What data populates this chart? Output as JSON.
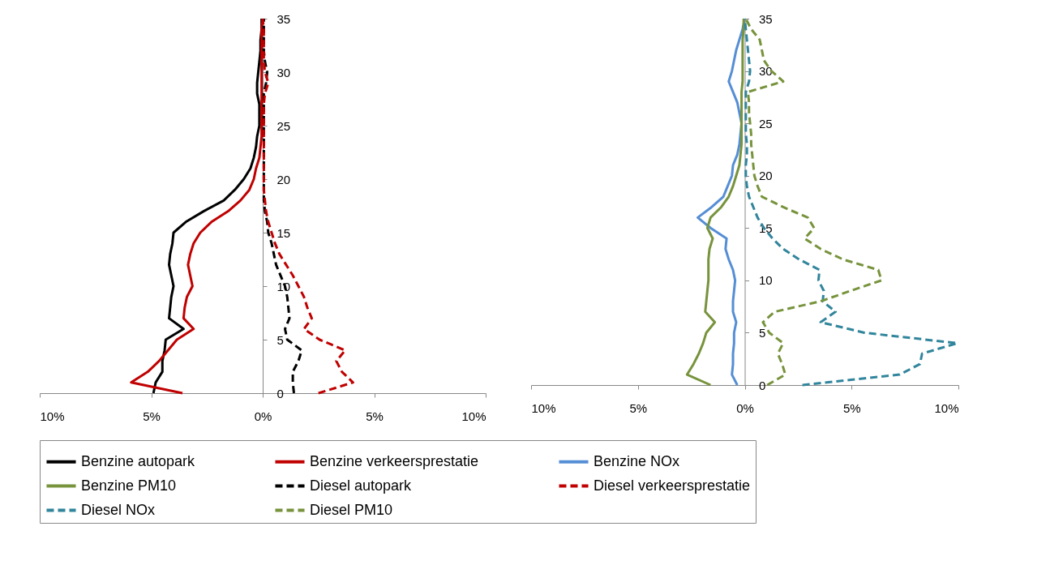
{
  "chart_data": [
    {
      "type": "line",
      "orientation": "horizontal",
      "legend": "bottom",
      "x": [
        0,
        1,
        2,
        3,
        4,
        5,
        6,
        7,
        8,
        9,
        10,
        11,
        12,
        13,
        14,
        15,
        16,
        17,
        18,
        19,
        20,
        21,
        22,
        23,
        24,
        25,
        26,
        27,
        28,
        29,
        30,
        31,
        32,
        33,
        34,
        35
      ],
      "xlim": [
        -10,
        10
      ],
      "xticks": [
        {
          "value": -10,
          "label": "10%"
        },
        {
          "value": -5,
          "label": "5%"
        },
        {
          "value": 0,
          "label": "0%"
        },
        {
          "value": 5,
          "label": "5%"
        },
        {
          "value": 10,
          "label": "10%"
        }
      ],
      "ylim": [
        0,
        35
      ],
      "yticks": [
        0,
        5,
        10,
        15,
        20,
        25,
        30,
        35
      ],
      "series": [
        {
          "name": "Benzine autopark",
          "color": "#000000",
          "line_style": "solid",
          "values": [
            -4.9,
            -4.8,
            -4.5,
            -4.5,
            -4.4,
            -4.35,
            -3.55,
            -4.2,
            -4.15,
            -4.1,
            -4.0,
            -4.1,
            -4.2,
            -4.15,
            -4.05,
            -4.0,
            -3.45,
            -2.65,
            -1.75,
            -1.25,
            -0.85,
            -0.55,
            -0.4,
            -0.3,
            -0.25,
            -0.15,
            -0.15,
            -0.15,
            -0.25,
            -0.25,
            -0.2,
            -0.15,
            -0.1,
            -0.1,
            -0.05,
            -0.05
          ]
        },
        {
          "name": "Benzine verkeersprestatie",
          "color": "#c00000",
          "line_style": "solid",
          "values": [
            -3.6,
            -5.9,
            -5.15,
            -4.65,
            -4.25,
            -3.85,
            -3.1,
            -3.55,
            -3.5,
            -3.4,
            -3.15,
            -3.25,
            -3.35,
            -3.25,
            -3.1,
            -2.8,
            -2.3,
            -1.55,
            -1.0,
            -0.6,
            -0.4,
            -0.3,
            -0.15,
            -0.1,
            -0.05,
            -0.05,
            -0.05,
            -0.05,
            -0.05,
            -0.05,
            -0.05,
            -0.05,
            -0.05,
            -0.05,
            -0.05,
            0
          ]
        },
        {
          "name": "Diesel autopark",
          "color": "#000000",
          "line_style": "dashed",
          "values": [
            1.4,
            1.35,
            1.35,
            1.6,
            1.75,
            1.1,
            1.0,
            1.2,
            1.15,
            1.1,
            1.0,
            0.8,
            0.6,
            0.5,
            0.4,
            0.25,
            0.2,
            0.1,
            0.05,
            0.05,
            0.05,
            0.05,
            0.05,
            0.05,
            0.05,
            0.05,
            0.05,
            0.05,
            0.05,
            0.15,
            0.2,
            0.1,
            0.05,
            0.05,
            0.05,
            0.05
          ]
        },
        {
          "name": "Diesel verkeersprestatie",
          "color": "#c00000",
          "line_style": "dashed",
          "values": [
            2.5,
            4.05,
            3.55,
            3.3,
            3.7,
            2.55,
            1.85,
            2.2,
            2.0,
            1.85,
            1.6,
            1.35,
            1.05,
            0.75,
            0.55,
            0.4,
            0.25,
            0.15,
            0.1,
            0.05,
            0.05,
            0.05,
            0.05,
            0.05,
            0.05,
            0.05,
            0.05,
            0.05,
            0.1,
            0.25,
            0.1,
            0.05,
            0.05,
            0.05,
            0.05,
            0
          ]
        }
      ]
    },
    {
      "type": "line",
      "orientation": "horizontal",
      "legend": "bottom",
      "x": [
        0,
        1,
        2,
        3,
        4,
        5,
        6,
        7,
        8,
        9,
        10,
        11,
        12,
        13,
        14,
        15,
        16,
        17,
        18,
        19,
        20,
        21,
        22,
        23,
        24,
        25,
        26,
        27,
        28,
        29,
        30,
        31,
        32,
        33,
        34,
        35
      ],
      "xlim": [
        -10,
        10
      ],
      "xticks": [
        {
          "value": -10,
          "label": "10%"
        },
        {
          "value": -5,
          "label": "5%"
        },
        {
          "value": 0,
          "label": "0%"
        },
        {
          "value": 5,
          "label": "5%"
        },
        {
          "value": 10,
          "label": "10%"
        }
      ],
      "ylim": [
        0,
        35
      ],
      "yticks": [
        0,
        5,
        10,
        15,
        20,
        25,
        30,
        35
      ],
      "series": [
        {
          "name": "Benzine NOx",
          "color": "#558ed5",
          "line_style": "solid",
          "values": [
            -0.35,
            -0.6,
            -0.55,
            -0.55,
            -0.5,
            -0.5,
            -0.4,
            -0.55,
            -0.55,
            -0.5,
            -0.45,
            -0.55,
            -0.75,
            -0.9,
            -0.85,
            -1.6,
            -2.2,
            -1.55,
            -1.0,
            -0.8,
            -0.6,
            -0.55,
            -0.35,
            -0.25,
            -0.2,
            -0.15,
            -0.25,
            -0.35,
            -0.55,
            -0.75,
            -0.6,
            -0.5,
            -0.4,
            -0.25,
            -0.1,
            0
          ]
        },
        {
          "name": "Benzine PM10",
          "color": "#77933c",
          "line_style": "solid",
          "values": [
            -1.6,
            -2.7,
            -2.4,
            -2.15,
            -1.95,
            -1.8,
            -1.4,
            -1.85,
            -1.8,
            -1.75,
            -1.7,
            -1.7,
            -1.7,
            -1.65,
            -1.5,
            -1.75,
            -1.6,
            -1.1,
            -0.75,
            -0.55,
            -0.4,
            -0.25,
            -0.2,
            -0.15,
            -0.15,
            -0.15,
            -0.15,
            -0.15,
            -0.15,
            -0.1,
            -0.1,
            -0.1,
            -0.1,
            -0.1,
            -0.05,
            -0.05
          ]
        },
        {
          "name": "Diesel NOx",
          "color": "#31859c",
          "line_style": "dashed",
          "values": [
            2.7,
            7.25,
            8.2,
            8.3,
            9.95,
            5.6,
            3.55,
            4.25,
            3.65,
            3.7,
            3.45,
            3.5,
            2.55,
            1.8,
            1.3,
            0.9,
            0.6,
            0.4,
            0.2,
            0.1,
            0.05,
            0.05,
            0.1,
            0.1,
            0.05,
            0.05,
            0.05,
            0.05,
            0.05,
            0.2,
            0.25,
            0.2,
            0.15,
            0.1,
            0.05,
            0
          ]
        },
        {
          "name": "Diesel PM10",
          "color": "#77933c",
          "line_style": "dashed",
          "values": [
            1.05,
            1.9,
            1.75,
            1.55,
            1.8,
            1.15,
            0.85,
            1.4,
            3.55,
            4.95,
            6.4,
            6.25,
            4.6,
            3.55,
            2.8,
            3.25,
            2.95,
            1.8,
            0.8,
            0.6,
            0.45,
            0.4,
            0.35,
            0.3,
            0.3,
            0.25,
            0.2,
            0.2,
            0.15,
            1.8,
            1.25,
            0.9,
            0.8,
            0.7,
            0.3,
            0.05
          ]
        }
      ]
    }
  ]
}
